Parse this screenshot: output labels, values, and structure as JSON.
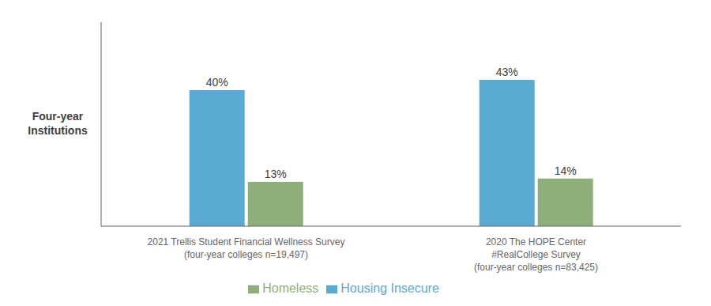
{
  "chart_data": {
    "type": "bar",
    "ylabel": "Four-year\nInstitutions",
    "categories": [
      "2021 Trellis Student Financial Wellness Survey\n(four-year colleges n=19,497)",
      "2020 The HOPE Center\n#RealCollege Survey\n(four-year colleges n=83,425)"
    ],
    "series": [
      {
        "name": "Housing Insecure",
        "color": "#5BAAD4",
        "values": [
          40,
          43
        ],
        "value_labels": [
          "40%",
          "43%"
        ]
      },
      {
        "name": "Homeless",
        "color": "#8FAF7A",
        "values": [
          13,
          14
        ],
        "value_labels": [
          "13%",
          "14%"
        ]
      }
    ],
    "ylim": [
      0,
      60
    ],
    "grid": false,
    "legend": "bottom",
    "data_labels": true,
    "tick_labels": "x"
  }
}
